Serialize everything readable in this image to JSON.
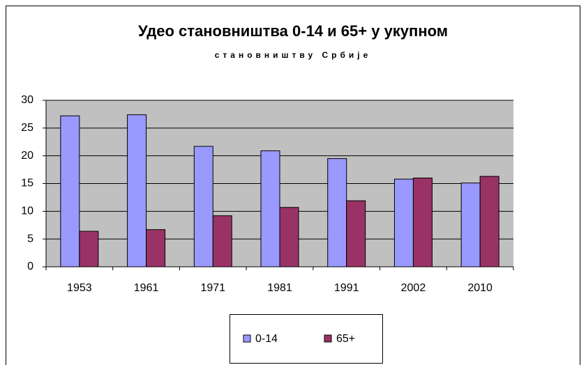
{
  "chart_data": {
    "type": "bar",
    "title": "Удео становништва 0-14 и 65+ у укупном",
    "subtitle": "становништву Србије",
    "categories": [
      "1953",
      "1961",
      "1971",
      "1981",
      "1991",
      "2002",
      "2010"
    ],
    "series": [
      {
        "name": "0-14",
        "color": "#9999ff",
        "values": [
          27.2,
          27.4,
          21.7,
          20.9,
          19.5,
          15.8,
          15.1
        ]
      },
      {
        "name": "65+",
        "color": "#993366",
        "values": [
          6.4,
          6.7,
          9.2,
          10.7,
          11.9,
          16.0,
          16.3
        ]
      }
    ],
    "ylim": [
      0,
      30
    ],
    "yticks": [
      0,
      5,
      10,
      15,
      20,
      25,
      30
    ],
    "grid": true,
    "legend": "bottom"
  }
}
